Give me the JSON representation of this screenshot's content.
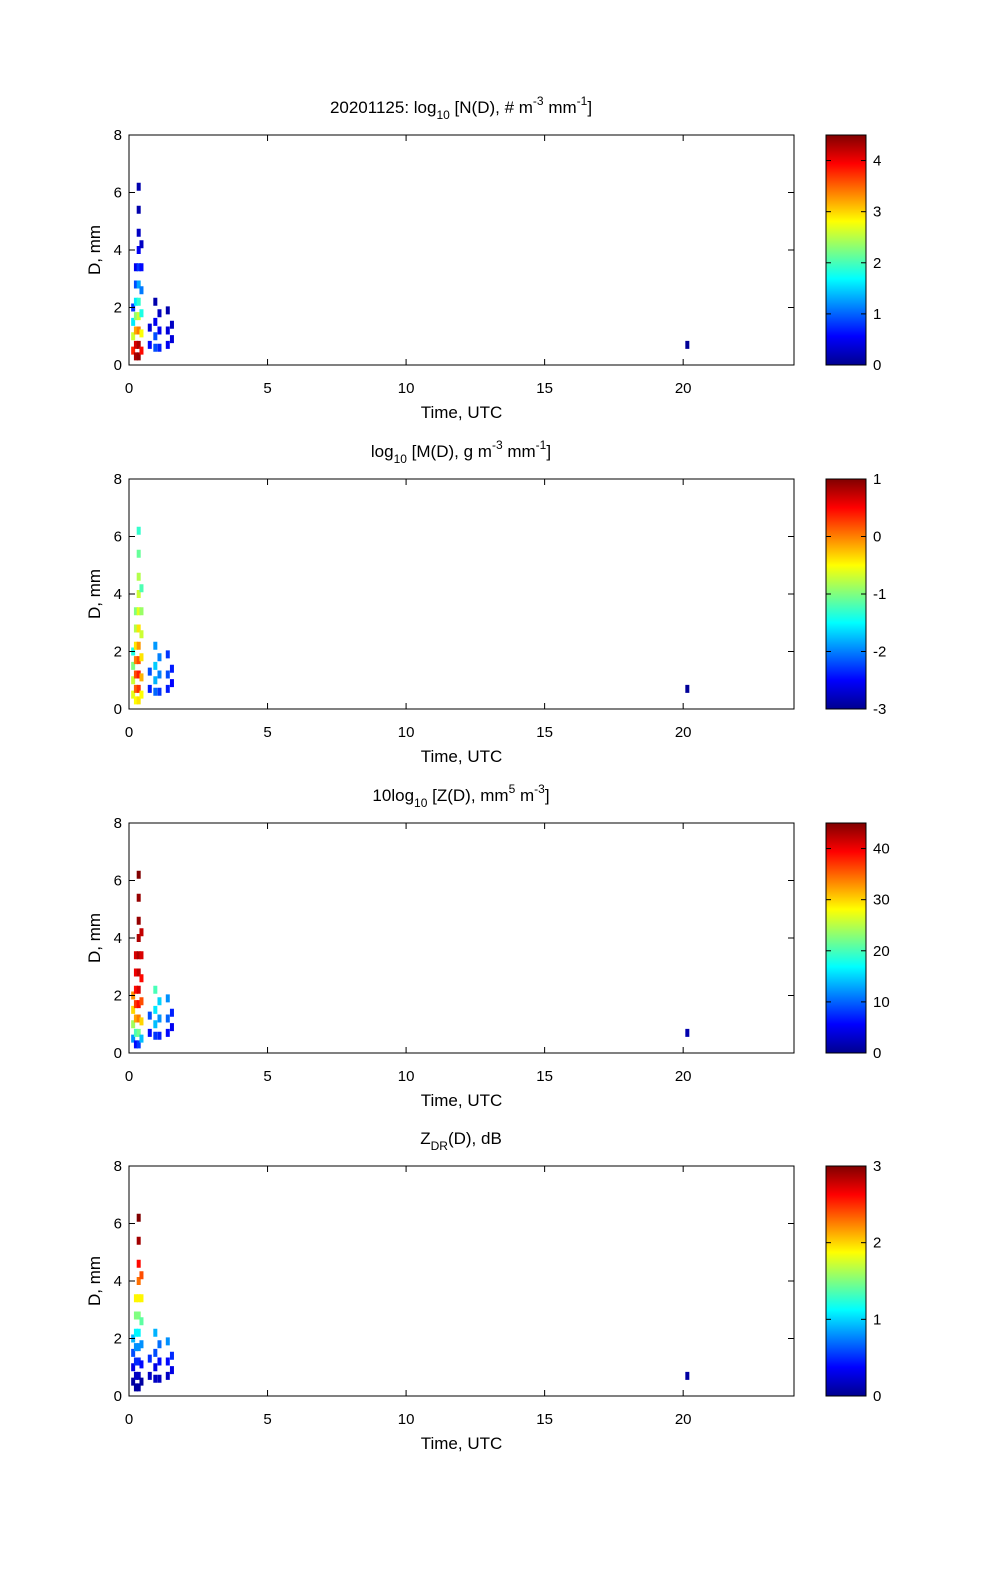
{
  "chart_data": [
    {
      "type": "heatmap",
      "title": {
        "prefix": "20201125: log",
        "sub": "10",
        "mid1": " [N(D), # m",
        "sup1": "-3",
        "mid2": " mm",
        "sup2": "-1",
        "end": "]"
      },
      "xlabel": "Time, UTC",
      "ylabel": "D, mm",
      "xlim": [
        0,
        24
      ],
      "ylim": [
        0,
        8
      ],
      "xticks": [
        0,
        5,
        10,
        15,
        20
      ],
      "yticks": [
        0,
        2,
        4,
        6,
        8
      ],
      "colorbar": {
        "range": [
          0,
          4.5
        ],
        "ticks": [
          0,
          1,
          2,
          3,
          4
        ]
      },
      "points": [
        {
          "x": 0.15,
          "y": 0.5,
          "v": 3.8
        },
        {
          "x": 0.15,
          "y": 1.0,
          "v": 2.6
        },
        {
          "x": 0.15,
          "y": 1.5,
          "v": 1.6
        },
        {
          "x": 0.15,
          "y": 2.0,
          "v": 0.8
        },
        {
          "x": 0.25,
          "y": 0.3,
          "v": 4.3
        },
        {
          "x": 0.25,
          "y": 0.7,
          "v": 4.1
        },
        {
          "x": 0.25,
          "y": 1.2,
          "v": 3.2
        },
        {
          "x": 0.25,
          "y": 1.7,
          "v": 2.3
        },
        {
          "x": 0.25,
          "y": 2.2,
          "v": 1.6
        },
        {
          "x": 0.25,
          "y": 2.8,
          "v": 0.9
        },
        {
          "x": 0.25,
          "y": 3.4,
          "v": 0.5
        },
        {
          "x": 0.35,
          "y": 0.3,
          "v": 4.4
        },
        {
          "x": 0.35,
          "y": 0.7,
          "v": 4.3
        },
        {
          "x": 0.35,
          "y": 1.2,
          "v": 3.4
        },
        {
          "x": 0.35,
          "y": 1.7,
          "v": 2.6
        },
        {
          "x": 0.35,
          "y": 2.2,
          "v": 1.9
        },
        {
          "x": 0.35,
          "y": 2.8,
          "v": 1.3
        },
        {
          "x": 0.35,
          "y": 3.4,
          "v": 0.8
        },
        {
          "x": 0.35,
          "y": 4.0,
          "v": 0.5
        },
        {
          "x": 0.35,
          "y": 4.6,
          "v": 0.3
        },
        {
          "x": 0.35,
          "y": 5.4,
          "v": 0.2
        },
        {
          "x": 0.35,
          "y": 6.2,
          "v": 0.2
        },
        {
          "x": 0.45,
          "y": 0.5,
          "v": 3.9
        },
        {
          "x": 0.45,
          "y": 1.1,
          "v": 2.8
        },
        {
          "x": 0.45,
          "y": 1.8,
          "v": 1.8
        },
        {
          "x": 0.45,
          "y": 2.6,
          "v": 1.1
        },
        {
          "x": 0.45,
          "y": 3.4,
          "v": 0.6
        },
        {
          "x": 0.45,
          "y": 4.2,
          "v": 0.3
        },
        {
          "x": 0.75,
          "y": 0.7,
          "v": 0.6
        },
        {
          "x": 0.75,
          "y": 1.3,
          "v": 0.4
        },
        {
          "x": 0.95,
          "y": 0.6,
          "v": 0.9
        },
        {
          "x": 0.95,
          "y": 1.0,
          "v": 0.9
        },
        {
          "x": 0.95,
          "y": 1.5,
          "v": 0.5
        },
        {
          "x": 0.95,
          "y": 2.2,
          "v": 0.2
        },
        {
          "x": 1.1,
          "y": 0.6,
          "v": 0.7
        },
        {
          "x": 1.1,
          "y": 1.2,
          "v": 0.5
        },
        {
          "x": 1.1,
          "y": 1.8,
          "v": 0.3
        },
        {
          "x": 1.4,
          "y": 0.7,
          "v": 0.5
        },
        {
          "x": 1.4,
          "y": 1.2,
          "v": 0.4
        },
        {
          "x": 1.4,
          "y": 1.9,
          "v": 0.2
        },
        {
          "x": 1.55,
          "y": 0.9,
          "v": 0.4
        },
        {
          "x": 1.55,
          "y": 1.4,
          "v": 0.3
        },
        {
          "x": 20.15,
          "y": 0.7,
          "v": 0.1
        }
      ]
    },
    {
      "type": "heatmap",
      "title": {
        "prefix": "log",
        "sub": "10",
        "mid1": " [M(D), g m",
        "sup1": "-3",
        "mid2": " mm",
        "sup2": "-1",
        "end": "]"
      },
      "xlabel": "Time, UTC",
      "ylabel": "D, mm",
      "xlim": [
        0,
        24
      ],
      "ylim": [
        0,
        8
      ],
      "xticks": [
        0,
        5,
        10,
        15,
        20
      ],
      "yticks": [
        0,
        2,
        4,
        6,
        8
      ],
      "colorbar": {
        "range": [
          -3,
          1
        ],
        "ticks": [
          -3,
          -2,
          -1,
          0,
          1
        ]
      },
      "points": [
        {
          "x": 0.15,
          "y": 0.5,
          "v": -0.6
        },
        {
          "x": 0.15,
          "y": 1.0,
          "v": -0.7
        },
        {
          "x": 0.15,
          "y": 1.5,
          "v": -1.0
        },
        {
          "x": 0.15,
          "y": 2.0,
          "v": -1.4
        },
        {
          "x": 0.25,
          "y": 0.3,
          "v": -0.5
        },
        {
          "x": 0.25,
          "y": 0.7,
          "v": 0.1
        },
        {
          "x": 0.25,
          "y": 1.2,
          "v": 0.2
        },
        {
          "x": 0.25,
          "y": 1.7,
          "v": 0.0
        },
        {
          "x": 0.25,
          "y": 2.2,
          "v": -0.4
        },
        {
          "x": 0.25,
          "y": 2.8,
          "v": -0.8
        },
        {
          "x": 0.25,
          "y": 3.4,
          "v": -1.0
        },
        {
          "x": 0.35,
          "y": 0.3,
          "v": -0.4
        },
        {
          "x": 0.35,
          "y": 0.7,
          "v": 0.3
        },
        {
          "x": 0.35,
          "y": 1.2,
          "v": 0.4
        },
        {
          "x": 0.35,
          "y": 1.7,
          "v": 0.2
        },
        {
          "x": 0.35,
          "y": 2.2,
          "v": -0.1
        },
        {
          "x": 0.35,
          "y": 2.8,
          "v": -0.4
        },
        {
          "x": 0.35,
          "y": 3.4,
          "v": -0.6
        },
        {
          "x": 0.35,
          "y": 4.0,
          "v": -0.7
        },
        {
          "x": 0.35,
          "y": 4.6,
          "v": -0.8
        },
        {
          "x": 0.35,
          "y": 5.4,
          "v": -1.1
        },
        {
          "x": 0.35,
          "y": 6.2,
          "v": -1.3
        },
        {
          "x": 0.45,
          "y": 0.5,
          "v": -0.5
        },
        {
          "x": 0.45,
          "y": 1.1,
          "v": -0.2
        },
        {
          "x": 0.45,
          "y": 1.8,
          "v": -0.4
        },
        {
          "x": 0.45,
          "y": 2.6,
          "v": -0.7
        },
        {
          "x": 0.45,
          "y": 3.4,
          "v": -0.9
        },
        {
          "x": 0.45,
          "y": 4.2,
          "v": -1.2
        },
        {
          "x": 0.75,
          "y": 0.7,
          "v": -2.4
        },
        {
          "x": 0.75,
          "y": 1.3,
          "v": -2.2
        },
        {
          "x": 0.95,
          "y": 0.6,
          "v": -2.1
        },
        {
          "x": 0.95,
          "y": 1.0,
          "v": -1.8
        },
        {
          "x": 0.95,
          "y": 1.5,
          "v": -1.7
        },
        {
          "x": 0.95,
          "y": 2.2,
          "v": -1.9
        },
        {
          "x": 1.1,
          "y": 0.6,
          "v": -2.3
        },
        {
          "x": 1.1,
          "y": 1.2,
          "v": -2.0
        },
        {
          "x": 1.1,
          "y": 1.8,
          "v": -2.0
        },
        {
          "x": 1.4,
          "y": 0.7,
          "v": -2.4
        },
        {
          "x": 1.4,
          "y": 1.2,
          "v": -2.2
        },
        {
          "x": 1.4,
          "y": 1.9,
          "v": -2.3
        },
        {
          "x": 1.55,
          "y": 0.9,
          "v": -2.5
        },
        {
          "x": 1.55,
          "y": 1.4,
          "v": -2.4
        },
        {
          "x": 20.15,
          "y": 0.7,
          "v": -2.9
        }
      ]
    },
    {
      "type": "heatmap",
      "title": {
        "prefix": "10log",
        "sub": "10",
        "mid1": " [Z(D),  mm",
        "sup1": "5",
        "mid2": " m",
        "sup2": "-3",
        "end": "]"
      },
      "xlabel": "Time, UTC",
      "ylabel": "D, mm",
      "xlim": [
        0,
        24
      ],
      "ylim": [
        0,
        8
      ],
      "xticks": [
        0,
        5,
        10,
        15,
        20
      ],
      "yticks": [
        0,
        2,
        4,
        6,
        8
      ],
      "colorbar": {
        "range": [
          0,
          45
        ],
        "ticks": [
          0,
          10,
          20,
          30,
          40
        ]
      },
      "points": [
        {
          "x": 0.15,
          "y": 0.5,
          "v": 12
        },
        {
          "x": 0.15,
          "y": 1.0,
          "v": 24
        },
        {
          "x": 0.15,
          "y": 1.5,
          "v": 30
        },
        {
          "x": 0.15,
          "y": 2.0,
          "v": 33
        },
        {
          "x": 0.25,
          "y": 0.3,
          "v": 6
        },
        {
          "x": 0.25,
          "y": 0.7,
          "v": 20
        },
        {
          "x": 0.25,
          "y": 1.2,
          "v": 32
        },
        {
          "x": 0.25,
          "y": 1.7,
          "v": 37
        },
        {
          "x": 0.25,
          "y": 2.2,
          "v": 39
        },
        {
          "x": 0.25,
          "y": 2.8,
          "v": 40
        },
        {
          "x": 0.25,
          "y": 3.4,
          "v": 41
        },
        {
          "x": 0.35,
          "y": 0.3,
          "v": 8
        },
        {
          "x": 0.35,
          "y": 0.7,
          "v": 22
        },
        {
          "x": 0.35,
          "y": 1.2,
          "v": 34
        },
        {
          "x": 0.35,
          "y": 1.7,
          "v": 39
        },
        {
          "x": 0.35,
          "y": 2.2,
          "v": 41
        },
        {
          "x": 0.35,
          "y": 2.8,
          "v": 42
        },
        {
          "x": 0.35,
          "y": 3.4,
          "v": 43
        },
        {
          "x": 0.35,
          "y": 4.0,
          "v": 43
        },
        {
          "x": 0.35,
          "y": 4.6,
          "v": 44
        },
        {
          "x": 0.35,
          "y": 5.4,
          "v": 44
        },
        {
          "x": 0.35,
          "y": 6.2,
          "v": 45
        },
        {
          "x": 0.45,
          "y": 0.5,
          "v": 14
        },
        {
          "x": 0.45,
          "y": 1.1,
          "v": 30
        },
        {
          "x": 0.45,
          "y": 1.8,
          "v": 36
        },
        {
          "x": 0.45,
          "y": 2.6,
          "v": 39
        },
        {
          "x": 0.45,
          "y": 3.4,
          "v": 41
        },
        {
          "x": 0.45,
          "y": 4.2,
          "v": 42
        },
        {
          "x": 0.75,
          "y": 0.7,
          "v": 6
        },
        {
          "x": 0.75,
          "y": 1.3,
          "v": 9
        },
        {
          "x": 0.95,
          "y": 0.6,
          "v": 8
        },
        {
          "x": 0.95,
          "y": 1.0,
          "v": 14
        },
        {
          "x": 0.95,
          "y": 1.5,
          "v": 16
        },
        {
          "x": 0.95,
          "y": 2.2,
          "v": 20
        },
        {
          "x": 1.1,
          "y": 0.6,
          "v": 7
        },
        {
          "x": 1.1,
          "y": 1.2,
          "v": 12
        },
        {
          "x": 1.1,
          "y": 1.8,
          "v": 15
        },
        {
          "x": 1.4,
          "y": 0.7,
          "v": 6
        },
        {
          "x": 1.4,
          "y": 1.2,
          "v": 10
        },
        {
          "x": 1.4,
          "y": 1.9,
          "v": 12
        },
        {
          "x": 1.55,
          "y": 0.9,
          "v": 5
        },
        {
          "x": 1.55,
          "y": 1.4,
          "v": 7
        },
        {
          "x": 20.15,
          "y": 0.7,
          "v": 2
        }
      ]
    },
    {
      "type": "heatmap",
      "title": {
        "prefix": "Z",
        "sub": "DR",
        "mid1": "(D), dB",
        "sup1": "",
        "mid2": "",
        "sup2": "",
        "end": ""
      },
      "xlabel": "Time, UTC",
      "ylabel": "D, mm",
      "xlim": [
        0,
        24
      ],
      "ylim": [
        0,
        8
      ],
      "xticks": [
        0,
        5,
        10,
        15,
        20
      ],
      "yticks": [
        0,
        2,
        4,
        6,
        8
      ],
      "colorbar": {
        "range": [
          0,
          3
        ],
        "ticks": [
          0,
          1,
          2,
          3
        ]
      },
      "points": [
        {
          "x": 0.15,
          "y": 0.5,
          "v": 0.1
        },
        {
          "x": 0.15,
          "y": 1.0,
          "v": 0.3
        },
        {
          "x": 0.15,
          "y": 1.5,
          "v": 0.6
        },
        {
          "x": 0.15,
          "y": 2.0,
          "v": 0.9
        },
        {
          "x": 0.25,
          "y": 0.3,
          "v": 0.1
        },
        {
          "x": 0.25,
          "y": 0.7,
          "v": 0.2
        },
        {
          "x": 0.25,
          "y": 1.2,
          "v": 0.5
        },
        {
          "x": 0.25,
          "y": 1.7,
          "v": 0.8
        },
        {
          "x": 0.25,
          "y": 2.2,
          "v": 1.1
        },
        {
          "x": 0.25,
          "y": 2.8,
          "v": 1.5
        },
        {
          "x": 0.25,
          "y": 3.4,
          "v": 1.9
        },
        {
          "x": 0.35,
          "y": 0.3,
          "v": 0.1
        },
        {
          "x": 0.35,
          "y": 0.7,
          "v": 0.2
        },
        {
          "x": 0.35,
          "y": 1.2,
          "v": 0.5
        },
        {
          "x": 0.35,
          "y": 1.7,
          "v": 0.8
        },
        {
          "x": 0.35,
          "y": 2.2,
          "v": 1.1
        },
        {
          "x": 0.35,
          "y": 2.8,
          "v": 1.5
        },
        {
          "x": 0.35,
          "y": 3.4,
          "v": 1.9
        },
        {
          "x": 0.35,
          "y": 4.0,
          "v": 2.3
        },
        {
          "x": 0.35,
          "y": 4.6,
          "v": 2.6
        },
        {
          "x": 0.35,
          "y": 5.4,
          "v": 2.9
        },
        {
          "x": 0.35,
          "y": 6.2,
          "v": 3.0
        },
        {
          "x": 0.45,
          "y": 0.5,
          "v": 0.1
        },
        {
          "x": 0.45,
          "y": 1.1,
          "v": 0.4
        },
        {
          "x": 0.45,
          "y": 1.8,
          "v": 0.8
        },
        {
          "x": 0.45,
          "y": 2.6,
          "v": 1.4
        },
        {
          "x": 0.45,
          "y": 3.4,
          "v": 1.9
        },
        {
          "x": 0.45,
          "y": 4.2,
          "v": 2.4
        },
        {
          "x": 0.75,
          "y": 0.7,
          "v": 0.2
        },
        {
          "x": 0.75,
          "y": 1.3,
          "v": 0.5
        },
        {
          "x": 0.95,
          "y": 0.6,
          "v": 0.2
        },
        {
          "x": 0.95,
          "y": 1.0,
          "v": 0.3
        },
        {
          "x": 0.95,
          "y": 1.5,
          "v": 0.6
        },
        {
          "x": 0.95,
          "y": 2.2,
          "v": 0.9
        },
        {
          "x": 1.1,
          "y": 0.6,
          "v": 0.2
        },
        {
          "x": 1.1,
          "y": 1.2,
          "v": 0.4
        },
        {
          "x": 1.1,
          "y": 1.8,
          "v": 0.7
        },
        {
          "x": 1.4,
          "y": 0.7,
          "v": 0.2
        },
        {
          "x": 1.4,
          "y": 1.2,
          "v": 0.4
        },
        {
          "x": 1.4,
          "y": 1.9,
          "v": 0.8
        },
        {
          "x": 1.55,
          "y": 0.9,
          "v": 0.3
        },
        {
          "x": 1.55,
          "y": 1.4,
          "v": 0.5
        },
        {
          "x": 20.15,
          "y": 0.7,
          "v": 0.1
        }
      ]
    }
  ]
}
